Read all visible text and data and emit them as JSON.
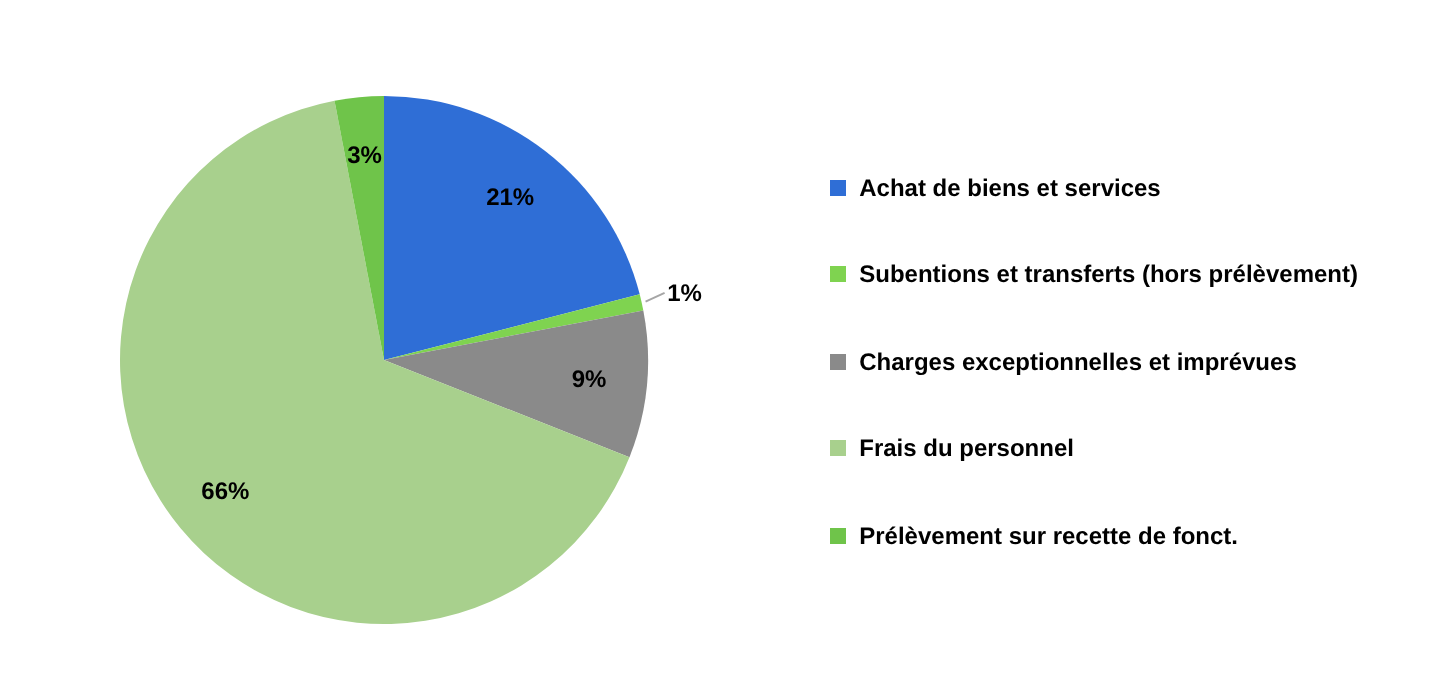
{
  "chart_data": {
    "type": "pie",
    "categories": [
      "Achat de biens et services",
      "Subentions et transferts (hors prélèvement)",
      "Charges exceptionnelles et imprévues",
      "Frais du personnel",
      "Prélèvement sur recette de fonct."
    ],
    "values": [
      21,
      1,
      9,
      66,
      3
    ],
    "colors": [
      "#2f6ed6",
      "#7fd350",
      "#8a8a8a",
      "#a8d08d",
      "#6fc44a"
    ],
    "value_labels": [
      "21%",
      "1%",
      "9%",
      "66%",
      "3%"
    ],
    "legend": "right"
  }
}
